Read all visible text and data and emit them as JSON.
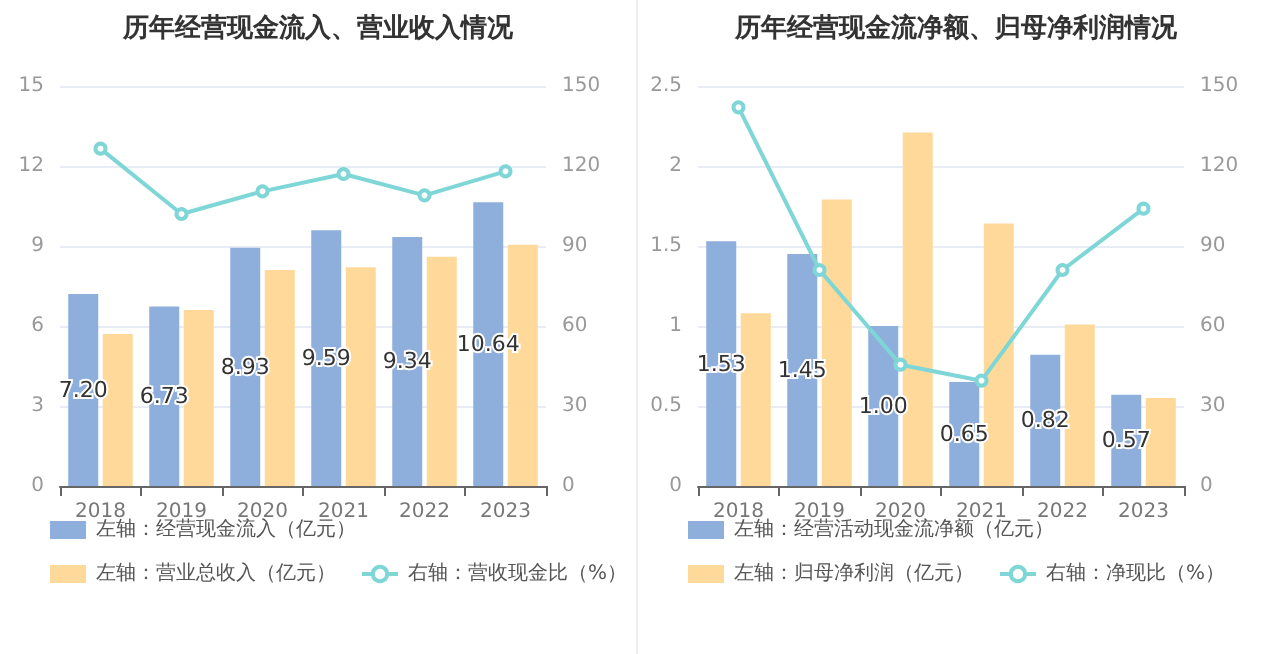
{
  "chart_data": [
    {
      "type": "bar",
      "title": "历年经营现金流入、营业收入情况",
      "categories": [
        "2018",
        "2019",
        "2020",
        "2021",
        "2022",
        "2023"
      ],
      "series": [
        {
          "name": "左轴：经营现金流入（亿元）",
          "color": "#8eaedb",
          "values": [
            7.2,
            6.73,
            8.93,
            9.59,
            9.34,
            10.64
          ],
          "value_labels": [
            "7.20",
            "6.73",
            "8.93",
            "9.59",
            "9.34",
            "10.64"
          ]
        },
        {
          "name": "左轴：营业总收入（亿元）",
          "color": "#ffd999",
          "values": [
            5.7,
            6.6,
            8.1,
            8.2,
            8.6,
            9.05
          ]
        },
        {
          "name": "右轴：营收现金比（%）",
          "type": "line",
          "axis": "y2",
          "color": "#7fd6d6",
          "values": [
            126.5,
            102,
            110.5,
            117,
            109,
            118
          ]
        }
      ],
      "ylim": [
        0,
        15
      ],
      "yticks": [
        0,
        3,
        6,
        9,
        12,
        15
      ],
      "y2lim": [
        0,
        150
      ],
      "y2ticks": [
        0,
        30,
        60,
        90,
        120,
        150
      ],
      "grid": "y",
      "legend": "bottom",
      "marker": "circle"
    },
    {
      "type": "bar",
      "title": "历年经营现金流净额、归母净利润情况",
      "categories": [
        "2018",
        "2019",
        "2020",
        "2021",
        "2022",
        "2023"
      ],
      "series": [
        {
          "name": "左轴：经营活动现金流净额（亿元）",
          "color": "#8eaedb",
          "values": [
            1.53,
            1.45,
            1.0,
            0.65,
            0.82,
            0.57
          ],
          "value_labels": [
            "1.53",
            "1.45",
            "1.00",
            "0.65",
            "0.82",
            "0.57"
          ]
        },
        {
          "name": "左轴：归母净利润（亿元）",
          "color": "#ffd999",
          "values": [
            1.08,
            1.79,
            2.21,
            1.64,
            1.01,
            0.55
          ]
        },
        {
          "name": "右轴：净现比（%）",
          "type": "line",
          "axis": "y2",
          "color": "#7fd6d6",
          "values": [
            142,
            81,
            45.5,
            39.5,
            81,
            104
          ]
        }
      ],
      "ylim": [
        0,
        2.5
      ],
      "yticks": [
        0,
        0.5,
        1,
        1.5,
        2,
        2.5
      ],
      "y2lim": [
        0,
        150
      ],
      "y2ticks": [
        0,
        30,
        60,
        90,
        120,
        150
      ],
      "grid": "y",
      "legend": "bottom",
      "marker": "circle"
    }
  ]
}
